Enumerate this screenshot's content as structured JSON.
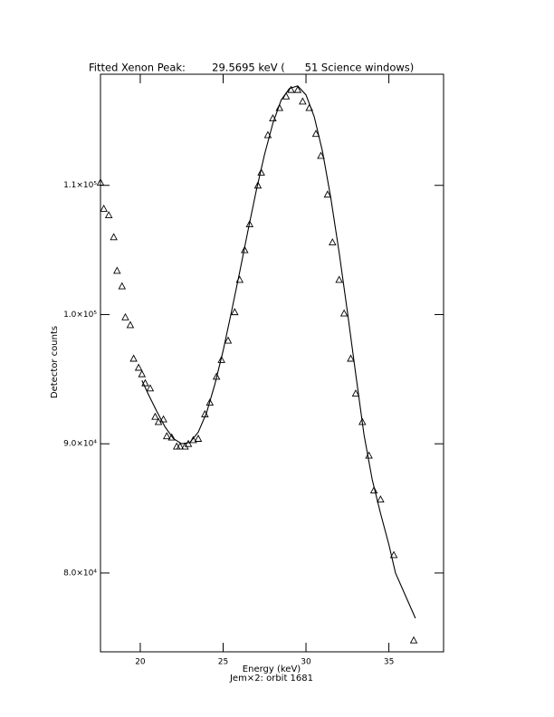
{
  "chart_data": {
    "type": "scatter",
    "title": "Fitted Xenon Peak:        29.5695 keV (      51 Science windows)",
    "xlabel": "Energy (keV)",
    "subtitle": "Jem×2: orbit 1681",
    "ylabel": "Detector counts",
    "xlim": [
      17.6,
      38.3
    ],
    "ylim": [
      73900,
      118600
    ],
    "xticks": [
      20,
      25,
      30,
      35
    ],
    "yticks": [
      {
        "value": 80000,
        "label": "8.0×10⁴"
      },
      {
        "value": 90000,
        "label": "9.0×10⁴"
      },
      {
        "value": 100000,
        "label": "1.0×10⁵"
      },
      {
        "value": 110000,
        "label": "1.1×10⁵"
      }
    ],
    "series": [
      {
        "type": "scatter",
        "marker": "triangle",
        "color": "#000000",
        "x": [
          17.6,
          17.8,
          18.1,
          18.4,
          18.6,
          18.9,
          19.1,
          19.4,
          19.6,
          19.9,
          20.1,
          20.3,
          20.6,
          20.9,
          21.1,
          21.4,
          21.6,
          21.9,
          22.2,
          22.4,
          22.7,
          22.9,
          23.2,
          23.5,
          23.9,
          24.2,
          24.6,
          24.9,
          25.3,
          25.7,
          26.0,
          26.3,
          26.6,
          27.1,
          27.3,
          27.7,
          28.0,
          28.4,
          28.8,
          29.1,
          29.5,
          29.8,
          30.2,
          30.6,
          30.9,
          31.3,
          31.6,
          32.0,
          32.3,
          32.7,
          33.0,
          33.4,
          33.8,
          34.1,
          34.5,
          35.3,
          36.5
        ],
        "values": [
          110230,
          108200,
          107700,
          106000,
          103400,
          102200,
          99800,
          99200,
          96600,
          95900,
          95400,
          94700,
          94300,
          92100,
          91700,
          91900,
          90600,
          90500,
          89800,
          89800,
          89800,
          90000,
          90300,
          90400,
          92300,
          93200,
          95200,
          96500,
          98000,
          100200,
          102700,
          105000,
          107000,
          110000,
          111000,
          113900,
          115200,
          116000,
          116900,
          117400,
          117400,
          116500,
          116000,
          114000,
          112300,
          109300,
          105600,
          102700,
          100100,
          96600,
          93900,
          91700,
          89100,
          86400,
          85700,
          81400,
          74800
        ]
      },
      {
        "type": "line",
        "color": "#000000",
        "x": [
          20.1,
          20.5,
          21.0,
          21.5,
          22.0,
          22.5,
          23.0,
          23.5,
          24.0,
          24.5,
          25.0,
          25.5,
          26.0,
          26.5,
          27.0,
          27.5,
          28.0,
          28.5,
          29.0,
          29.5,
          30.0,
          30.5,
          31.0,
          31.5,
          32.0,
          32.5,
          33.0,
          33.5,
          34.0,
          34.5,
          35.0,
          35.4,
          36.6
        ],
        "values": [
          94900,
          93800,
          92500,
          91300,
          90400,
          90000,
          90100,
          90900,
          92400,
          94600,
          97200,
          100200,
          103300,
          106500,
          109600,
          112400,
          114800,
          116600,
          117500,
          117700,
          117000,
          115300,
          112600,
          109000,
          104800,
          100200,
          95400,
          90700,
          87200,
          84600,
          82200,
          80000,
          76500
        ]
      }
    ]
  }
}
